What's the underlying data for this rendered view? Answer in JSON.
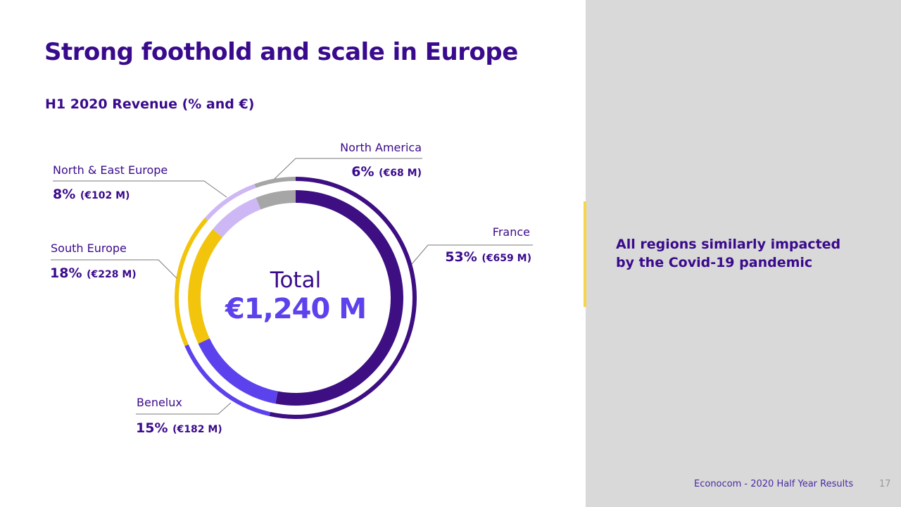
{
  "title": "Strong foothold and scale in Europe",
  "subtitle": "H1 2020 Revenue (% and €)",
  "note": {
    "prefix": "All regions ",
    "bold": "similarly impacted",
    "suffix": "by the Covid-19 pandemic"
  },
  "footer": {
    "text": "Econocom  - 2020 Half Year Results",
    "page": "17"
  },
  "chart_data": {
    "type": "pie",
    "title": "H1 2020 Revenue (% and €)",
    "center_label": "Total",
    "center_value": "€1,240 M",
    "categories": [
      "France",
      "Benelux",
      "South Europe",
      "North & East Europe",
      "North America"
    ],
    "percent": [
      53,
      15,
      18,
      8,
      6
    ],
    "values_eur_m": [
      659,
      182,
      228,
      102,
      68
    ],
    "pct_labels": [
      "53%",
      "15%",
      "18%",
      "8%",
      "6%"
    ],
    "amount_labels": [
      "(€659 M)",
      "(€182 M)",
      "(€228 M)",
      "(€102 M)",
      "(€68 M)"
    ],
    "colors": [
      "#3d0f82",
      "#5b42ec",
      "#f2c40c",
      "#cdb8f5",
      "#a6a6a6"
    ]
  }
}
